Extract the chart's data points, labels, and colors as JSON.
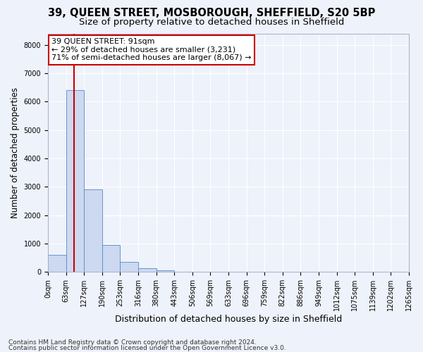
{
  "title": "39, QUEEN STREET, MOSBOROUGH, SHEFFIELD, S20 5BP",
  "subtitle": "Size of property relative to detached houses in Sheffield",
  "xlabel": "Distribution of detached houses by size in Sheffield",
  "ylabel": "Number of detached properties",
  "bin_labels": [
    "0sqm",
    "63sqm",
    "127sqm",
    "190sqm",
    "253sqm",
    "316sqm",
    "380sqm",
    "443sqm",
    "506sqm",
    "569sqm",
    "633sqm",
    "696sqm",
    "759sqm",
    "822sqm",
    "886sqm",
    "949sqm",
    "1012sqm",
    "1075sqm",
    "1139sqm",
    "1202sqm",
    "1265sqm"
  ],
  "bar_values": [
    600,
    6400,
    2900,
    950,
    350,
    130,
    60,
    0,
    0,
    0,
    0,
    0,
    0,
    0,
    0,
    0,
    0,
    0,
    0,
    0
  ],
  "bar_color": "#ccd9f0",
  "bar_edge_color": "#5588cc",
  "vline_color": "#cc0000",
  "annotation_text": "39 QUEEN STREET: 91sqm\n← 29% of detached houses are smaller (3,231)\n71% of semi-detached houses are larger (8,067) →",
  "annotation_box_color": "#ffffff",
  "annotation_box_edge_color": "#cc0000",
  "ylim": [
    0,
    8400
  ],
  "yticks": [
    0,
    1000,
    2000,
    3000,
    4000,
    5000,
    6000,
    7000,
    8000
  ],
  "background_color": "#eef2fa",
  "axes_background_color": "#eef2fa",
  "grid_color": "#ffffff",
  "footer_line1": "Contains HM Land Registry data © Crown copyright and database right 2024.",
  "footer_line2": "Contains public sector information licensed under the Open Government Licence v3.0.",
  "title_fontsize": 10.5,
  "subtitle_fontsize": 9.5,
  "xlabel_fontsize": 9,
  "ylabel_fontsize": 8.5,
  "tick_fontsize": 7,
  "annotation_fontsize": 8,
  "footer_fontsize": 6.5
}
